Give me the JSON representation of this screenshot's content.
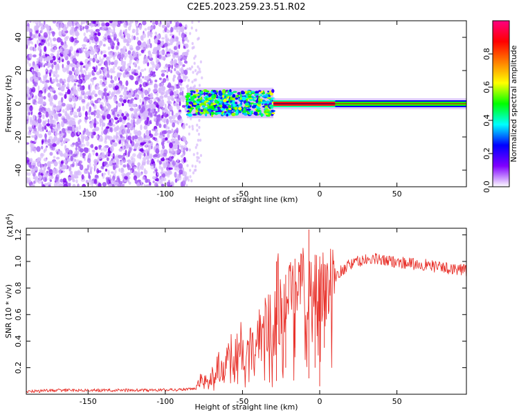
{
  "title": "C2E5.2023.259.23.51.R02",
  "chart_data": [
    {
      "type": "heatmap",
      "xlabel": "Height of straight line (km)",
      "ylabel": "Frequency (Hz)",
      "xlim": [
        -190,
        95
      ],
      "ylim": [
        -50,
        50
      ],
      "xticks": [
        -150,
        -100,
        -50,
        0,
        50
      ],
      "yticks": [
        -40,
        -20,
        0,
        20,
        40
      ],
      "colorbar": {
        "label": "Normalized spectral amplitude",
        "range": [
          0,
          1
        ],
        "ticks": [
          0.0,
          0.2,
          0.4,
          0.6,
          0.8
        ],
        "colormap": [
          "#ffffff",
          "#8000ff",
          "#0000ff",
          "#00ffff",
          "#00ff00",
          "#ffff00",
          "#ff8000",
          "#ff0000",
          "#ff0080"
        ]
      },
      "regions": [
        {
          "x_range": [
            -190,
            -86
          ],
          "freq_range": [
            -50,
            50
          ],
          "level": 0.1
        },
        {
          "x_range": [
            -86,
            -30
          ],
          "freq_range": [
            -7,
            8
          ],
          "level": 0.35
        },
        {
          "x_range": [
            -30,
            10
          ],
          "freq_range": [
            -3,
            3
          ],
          "level": 0.85
        },
        {
          "x_range": [
            10,
            95
          ],
          "freq_range": [
            -3,
            3
          ],
          "level": 0.5
        }
      ]
    },
    {
      "type": "line",
      "xlabel": "Height of straight line (km)",
      "ylabel": "SNR (10 * v/v)",
      "y_multiplier": "x10^4",
      "xlim": [
        -190,
        95
      ],
      "ylim": [
        0,
        12500
      ],
      "xticks": [
        -150,
        -100,
        -50,
        0,
        50
      ],
      "yticks": [
        2000,
        4000,
        6000,
        8000,
        10000,
        12000
      ],
      "ytick_labels": [
        "0.2",
        "0.4",
        "0.6",
        "0.8",
        "1.0",
        "1.2"
      ],
      "color": "#e8312a",
      "x": [
        -190,
        -170,
        -150,
        -130,
        -110,
        -90,
        -80,
        -76,
        -72,
        -70,
        -66,
        -62,
        -58,
        -55,
        -52,
        -48,
        -44,
        -40,
        -36,
        -33,
        -30,
        -27,
        -24,
        -21,
        -18,
        -15,
        -12,
        -9,
        -6,
        -3,
        0,
        5,
        10,
        15,
        20,
        25,
        30,
        35,
        40,
        45,
        50,
        55,
        60,
        65,
        70,
        75,
        80,
        85,
        90,
        95
      ],
      "y": [
        200,
        300,
        300,
        300,
        300,
        350,
        400,
        1400,
        600,
        1500,
        2200,
        1800,
        3000,
        2600,
        4000,
        2500,
        3500,
        5000,
        4500,
        6000,
        4800,
        7000,
        6000,
        6500,
        8000,
        6200,
        9000,
        8000,
        7500,
        8600,
        8000,
        7800,
        8900,
        9400,
        9800,
        10000,
        10100,
        10200,
        10100,
        10000,
        10000,
        9900,
        9800,
        9800,
        9700,
        9600,
        9500,
        9500,
        9400,
        9300
      ],
      "spikes": [
        {
          "x": -28,
          "y": 10000,
          "min": 1000
        },
        {
          "x": -22,
          "y": 9000,
          "min": 2000
        },
        {
          "x": -16,
          "y": 10200,
          "min": 3500
        },
        {
          "x": -7,
          "y": 12400,
          "min": 1200
        },
        {
          "x": -3,
          "y": 10500,
          "min": 2000
        },
        {
          "x": 0,
          "y": 9000,
          "min": 600
        },
        {
          "x": 3,
          "y": 9800,
          "min": 3500
        }
      ]
    }
  ]
}
